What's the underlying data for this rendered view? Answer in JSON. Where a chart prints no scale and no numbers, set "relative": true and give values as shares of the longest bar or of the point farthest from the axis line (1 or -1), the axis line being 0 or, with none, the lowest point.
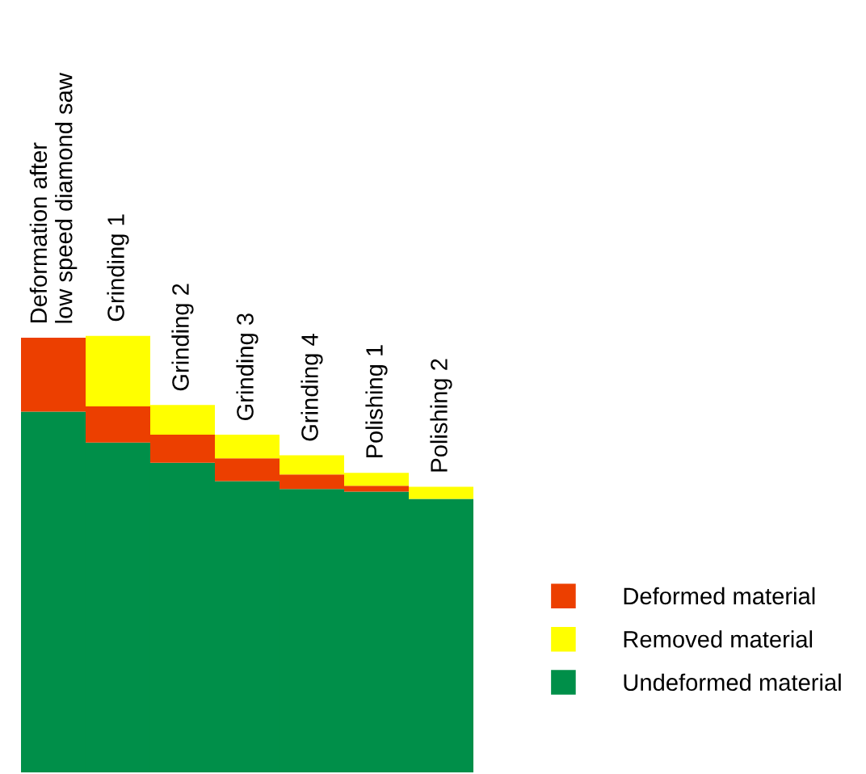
{
  "chart_data": {
    "type": "bar",
    "relative": true,
    "stacked": true,
    "legend": "right",
    "categories": [
      "Deformation after\nlow speed diamond saw",
      "Grinding 1",
      "Grinding 2",
      "Grinding 3",
      "Grinding 4",
      "Polishing 1",
      "Polishing 2"
    ],
    "series": [
      {
        "name": "Undeformed material",
        "color": "#008f49",
        "values": [
          0.826,
          0.755,
          0.709,
          0.667,
          0.649,
          0.643,
          0.626
        ]
      },
      {
        "name": "Deformed material",
        "color": "#ec3f00",
        "values": [
          0.169,
          0.083,
          0.064,
          0.052,
          0.033,
          0.013,
          0
        ]
      },
      {
        "name": "Removed material",
        "color": "#ffff00",
        "values": [
          0,
          0.162,
          0.068,
          0.054,
          0.044,
          0.03,
          0.028
        ]
      }
    ]
  }
}
